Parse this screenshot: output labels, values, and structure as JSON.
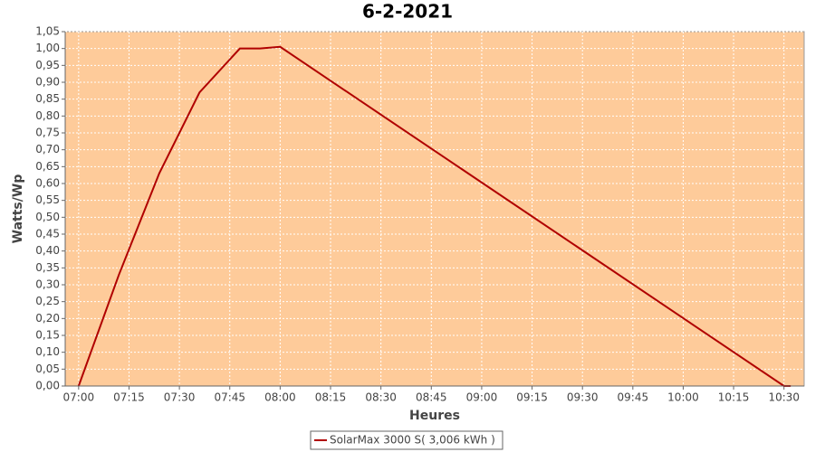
{
  "chart_data": {
    "type": "line",
    "title": "6-2-2021",
    "x_label": "Heures",
    "y_label": "Watts/Wp",
    "x": [
      "07:00",
      "07:12",
      "07:24",
      "07:36",
      "07:48",
      "07:54",
      "08:00",
      "10:30",
      "10:32"
    ],
    "series": [
      {
        "name": "SolarMax 3000 S( 3,006 kWh )",
        "color": "#b00000",
        "values": [
          0,
          0.33,
          0.63,
          0.87,
          1.0,
          1.0,
          1.005,
          0,
          0
        ]
      }
    ],
    "xlim": [
      "06:56",
      "10:36"
    ],
    "xticks": [
      "07:00",
      "07:15",
      "07:30",
      "07:45",
      "08:00",
      "08:15",
      "08:30",
      "08:45",
      "09:00",
      "09:15",
      "09:30",
      "09:45",
      "10:00",
      "10:15",
      "10:30"
    ],
    "ylim": [
      0,
      1.05
    ],
    "yticks": [
      {
        "value": 0,
        "label": "0,00"
      },
      {
        "value": 0.05,
        "label": "0,05"
      },
      {
        "value": 0.1,
        "label": "0,10"
      },
      {
        "value": 0.15,
        "label": "0,15"
      },
      {
        "value": 0.2,
        "label": "0,20"
      },
      {
        "value": 0.25,
        "label": "0,25"
      },
      {
        "value": 0.3,
        "label": "0,30"
      },
      {
        "value": 0.35,
        "label": "0,35"
      },
      {
        "value": 0.4,
        "label": "0,40"
      },
      {
        "value": 0.45,
        "label": "0,45"
      },
      {
        "value": 0.5,
        "label": "0,50"
      },
      {
        "value": 0.55,
        "label": "0,55"
      },
      {
        "value": 0.6,
        "label": "0,60"
      },
      {
        "value": 0.65,
        "label": "0,65"
      },
      {
        "value": 0.7,
        "label": "0,70"
      },
      {
        "value": 0.75,
        "label": "0,75"
      },
      {
        "value": 0.8,
        "label": "0,80"
      },
      {
        "value": 0.85,
        "label": "0,85"
      },
      {
        "value": 0.9,
        "label": "0,90"
      },
      {
        "value": 0.95,
        "label": "0,95"
      },
      {
        "value": 1.0,
        "label": "1,00"
      },
      {
        "value": 1.05,
        "label": "1,05"
      }
    ],
    "grid": true,
    "background": "#fecb9a",
    "legend": "bottom"
  }
}
